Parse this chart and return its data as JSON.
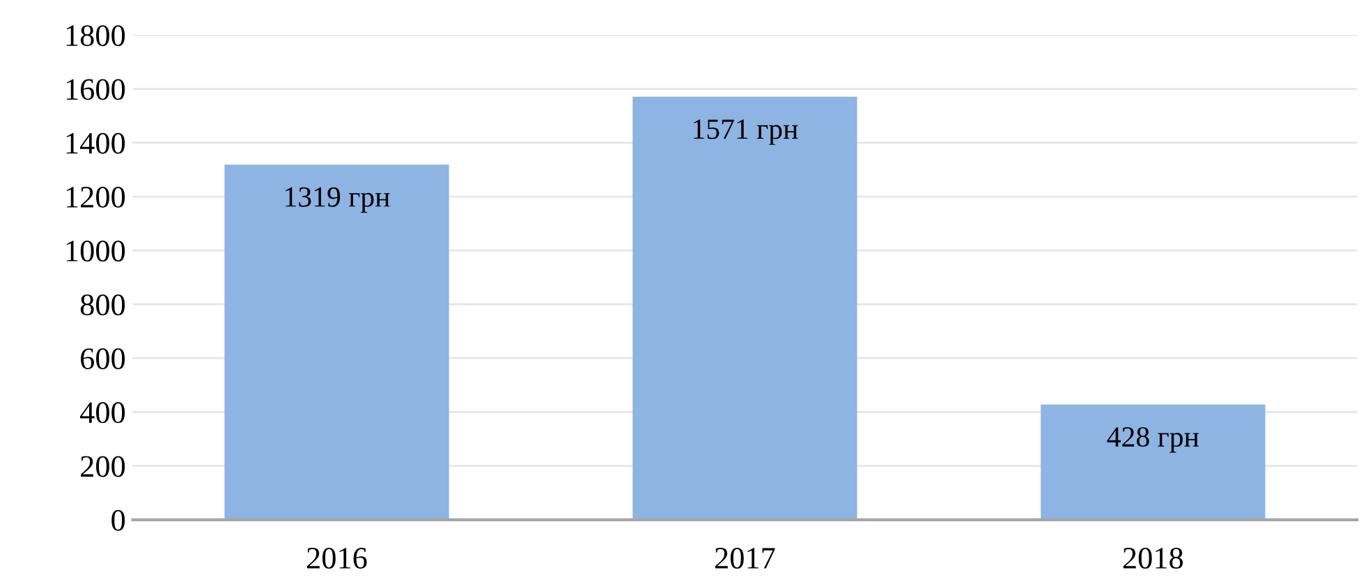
{
  "chart_data": {
    "type": "bar",
    "categories": [
      "2016",
      "2017",
      "2018"
    ],
    "values": [
      1319,
      1571,
      428
    ],
    "value_labels": [
      "1319 грн",
      "1571 грн",
      "428 грн"
    ],
    "color": "#8db4e2",
    "ylim": [
      0,
      1800
    ],
    "yticks": [
      0,
      200,
      400,
      600,
      800,
      1000,
      1200,
      1400,
      1600,
      1800
    ],
    "grid": "y"
  }
}
